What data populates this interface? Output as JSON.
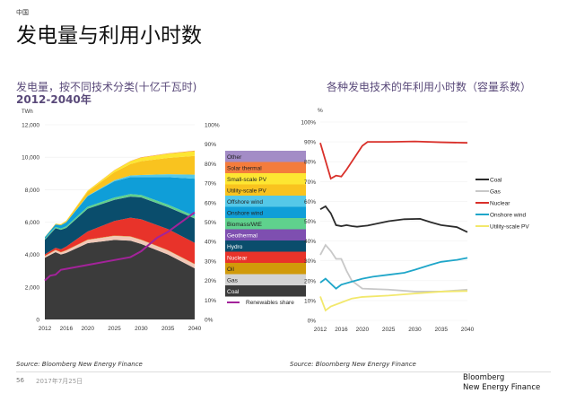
{
  "header": {
    "region": "中国",
    "title": "发电量与利用小时数"
  },
  "footer": {
    "source_left": "Source: Bloomberg New Energy Finance",
    "source_right": "Source: Bloomberg New Energy Finance",
    "page_number": "56",
    "date": "2017年7月25日",
    "logo_line1": "Bloomberg",
    "logo_line2": "New Energy Finance"
  },
  "chart_data": [
    {
      "type": "area",
      "title": "发电量，按不同技术分类(十亿千瓦时)",
      "subtitle": "2012-2040年",
      "ylabel": "TWh",
      "ylim": [
        0,
        12000
      ],
      "yticks": [
        "0",
        "2,000",
        "4,000",
        "6,000",
        "8,000",
        "10,000",
        "12,000"
      ],
      "y2lim": [
        0,
        100
      ],
      "y2ticks": [
        "0%",
        "10%",
        "20%",
        "30%",
        "40%",
        "50%",
        "60%",
        "70%",
        "80%",
        "90%",
        "100%"
      ],
      "xticks": [
        "2012",
        "2016",
        "2020",
        "2025",
        "2030",
        "2035",
        "2040"
      ],
      "legend": "right",
      "stacked": true,
      "x": [
        2012,
        2014,
        2015,
        2016,
        2020,
        2025,
        2028,
        2030,
        2035,
        2040
      ],
      "series": [
        {
          "name": "Coal",
          "color": "#3b3b3b",
          "values": [
            3800,
            4150,
            4000,
            4100,
            4700,
            4900,
            4850,
            4650,
            4000,
            3150
          ]
        },
        {
          "name": "Gas",
          "color": "#f0c8b8",
          "values": [
            100,
            120,
            130,
            150,
            200,
            250,
            250,
            250,
            250,
            250
          ]
        },
        {
          "name": "Oil",
          "color": "#d19a0a",
          "values": [
            20,
            20,
            20,
            20,
            20,
            20,
            20,
            20,
            20,
            20
          ]
        },
        {
          "name": "Nuclear",
          "color": "#e8332a",
          "values": [
            90,
            130,
            170,
            220,
            500,
            900,
            1150,
            1250,
            1300,
            1300
          ]
        },
        {
          "name": "Hydro",
          "color": "#0a4d6c",
          "values": [
            900,
            1200,
            1200,
            1150,
            1400,
            1300,
            1300,
            1350,
            1350,
            1500
          ]
        },
        {
          "name": "Geothermal",
          "color": "#7e4fb0",
          "values": [
            5,
            5,
            5,
            5,
            5,
            5,
            5,
            5,
            5,
            5
          ]
        },
        {
          "name": "Biomass/WtE",
          "color": "#5fd18d",
          "values": [
            60,
            80,
            80,
            90,
            120,
            140,
            150,
            150,
            150,
            150
          ]
        },
        {
          "name": "Onshore wind",
          "color": "#0f9ed8",
          "values": [
            100,
            150,
            200,
            250,
            650,
            1000,
            1050,
            1100,
            1700,
            2300
          ]
        },
        {
          "name": "Offshore wind",
          "color": "#55c8e8",
          "values": [
            0,
            0,
            0,
            5,
            30,
            60,
            100,
            130,
            180,
            250
          ]
        },
        {
          "name": "Utility-scale PV",
          "color": "#f9c31f",
          "values": [
            10,
            40,
            60,
            80,
            250,
            500,
            700,
            850,
            1000,
            1150
          ]
        },
        {
          "name": "Small-scale PV",
          "color": "#fde632",
          "values": [
            0,
            5,
            10,
            20,
            60,
            120,
            180,
            220,
            260,
            300
          ]
        },
        {
          "name": "Solar thermal",
          "color": "#f47c3c",
          "values": [
            0,
            0,
            0,
            0,
            5,
            10,
            15,
            20,
            25,
            30
          ]
        },
        {
          "name": "Other",
          "color": "#a38cc6",
          "values": [
            0,
            0,
            0,
            0,
            0,
            0,
            0,
            0,
            0,
            0
          ]
        }
      ],
      "line": {
        "name": "Renewables share",
        "color": "#a3239a",
        "axis": "right",
        "x": [
          2012,
          2013,
          2014,
          2015,
          2016,
          2020,
          2025,
          2028,
          2030,
          2033,
          2035,
          2040
        ],
        "values": [
          20,
          22.5,
          23,
          25.5,
          26,
          28,
          30.5,
          32,
          35,
          42,
          45,
          55
        ]
      }
    },
    {
      "type": "line",
      "title": "各种发电技术的年利用小时数（容量系数）",
      "ylabel": "%",
      "ylim": [
        0,
        100
      ],
      "yticks": [
        "0%",
        "10%",
        "20%",
        "30%",
        "40%",
        "50%",
        "60%",
        "70%",
        "80%",
        "90%",
        "100%"
      ],
      "xticks": [
        "2012",
        "2016",
        "2020",
        "2025",
        "2030",
        "2035",
        "2040"
      ],
      "legend": "right",
      "series": [
        {
          "name": "Coal",
          "color": "#2b2b2b",
          "x": [
            2012,
            2013,
            2014,
            2015,
            2016,
            2017,
            2018,
            2019,
            2020,
            2021,
            2025,
            2028,
            2031,
            2033,
            2035,
            2038,
            2040
          ],
          "values": [
            56,
            57.5,
            54,
            48,
            47.5,
            48,
            47.5,
            47.2,
            47.5,
            47.8,
            50,
            51,
            51.2,
            49.5,
            48,
            47,
            44.5
          ]
        },
        {
          "name": "Gas",
          "color": "#c8c8c8",
          "x": [
            2012,
            2013,
            2014,
            2015,
            2016,
            2017,
            2018,
            2020,
            2025,
            2030,
            2035,
            2040
          ],
          "values": [
            33,
            38,
            35,
            31,
            31,
            25,
            20,
            16,
            15.5,
            14.5,
            14.5,
            15.5
          ]
        },
        {
          "name": "Nuclear",
          "color": "#d9302a",
          "x": [
            2012,
            2014,
            2015,
            2016,
            2017,
            2020,
            2021,
            2025,
            2030,
            2035,
            2040
          ],
          "values": [
            89.5,
            71.5,
            73,
            72.5,
            76,
            88,
            90,
            90,
            90.2,
            89.8,
            89.5
          ]
        },
        {
          "name": "Onshore wind",
          "color": "#1fa6c9",
          "x": [
            2012,
            2013,
            2015,
            2016,
            2018,
            2020,
            2022,
            2025,
            2028,
            2030,
            2033,
            2035,
            2038,
            2040
          ],
          "values": [
            19,
            21,
            16,
            18,
            19.5,
            21,
            22,
            23,
            24,
            25.5,
            28,
            29.5,
            30.5,
            31.5
          ]
        },
        {
          "name": "Utility-scale PV",
          "color": "#f2e86c",
          "x": [
            2012,
            2013,
            2014,
            2016,
            2018,
            2020,
            2025,
            2030,
            2035,
            2040
          ],
          "values": [
            12,
            5,
            7,
            9,
            11,
            11.8,
            12.5,
            13.5,
            14.5,
            14.8
          ]
        }
      ]
    }
  ]
}
